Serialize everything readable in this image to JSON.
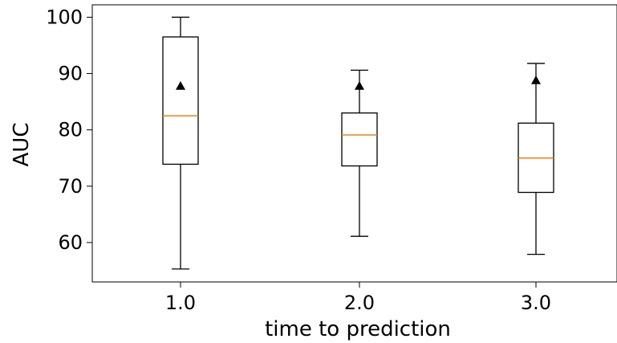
{
  "chart_data": {
    "type": "boxplot",
    "title": "",
    "xlabel": "time to prediction",
    "ylabel": "AUC",
    "categories": [
      "1.0",
      "2.0",
      "3.0"
    ],
    "ylim": [
      53,
      102.2
    ],
    "yticks": [
      60,
      70,
      80,
      90,
      100
    ],
    "ytick_labels": [
      "60",
      "70",
      "80",
      "90",
      "100"
    ],
    "boxes": [
      {
        "category": "1.0",
        "whisker_low": 55.3,
        "q1": 73.9,
        "median": 82.5,
        "q3": 96.5,
        "whisker_high": 100.0,
        "mean": 87.8
      },
      {
        "category": "2.0",
        "whisker_low": 61.1,
        "q1": 73.6,
        "median": 79.1,
        "q3": 83.0,
        "whisker_high": 90.6,
        "mean": 87.8
      },
      {
        "category": "3.0",
        "whisker_low": 57.9,
        "q1": 68.9,
        "median": 75.0,
        "q3": 81.2,
        "whisker_high": 91.8,
        "mean": 88.8
      }
    ],
    "colors": {
      "box": "#000000",
      "median": "#ff7f0e",
      "mean_marker": "#000000"
    },
    "grid": false,
    "legend": "none"
  }
}
